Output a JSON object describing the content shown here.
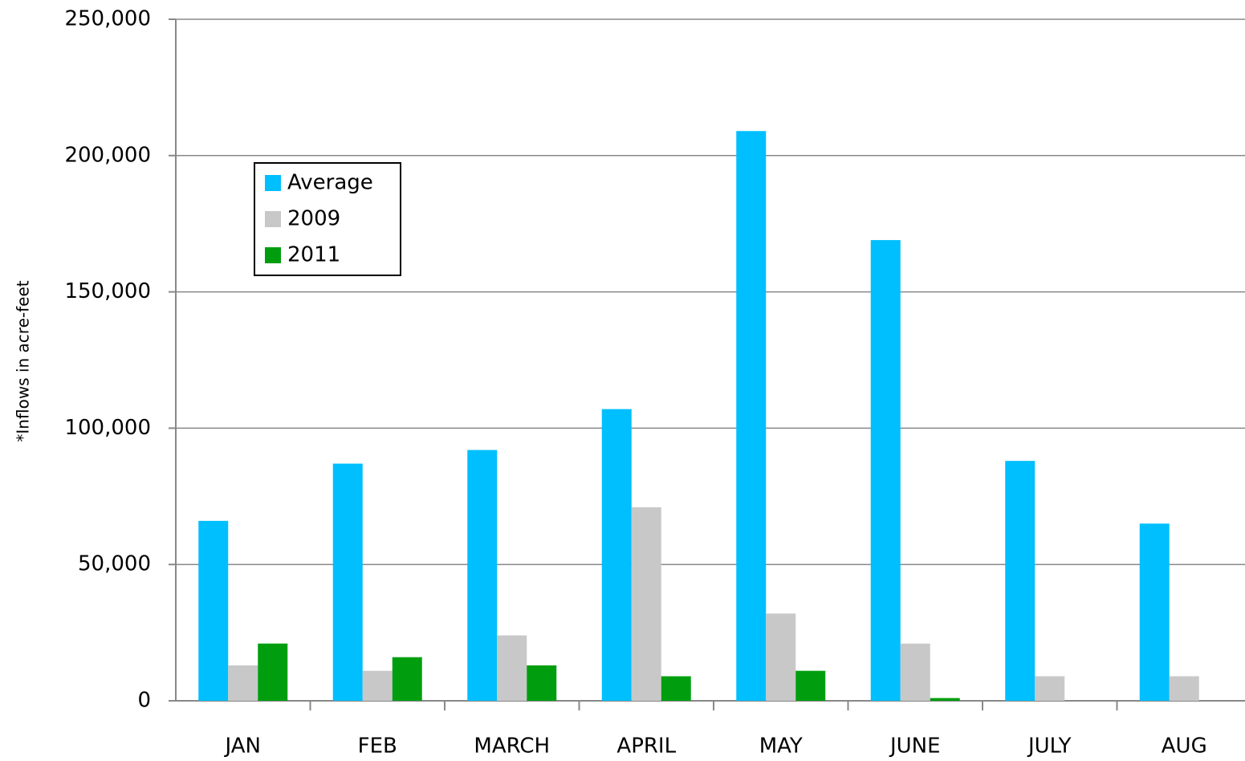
{
  "chart_data": {
    "type": "bar",
    "y_label": "*Inflows in acre-feet",
    "categories": [
      "JAN",
      "FEB",
      "MARCH",
      "APRIL",
      "MAY",
      "JUNE",
      "JULY",
      "AUG"
    ],
    "series": [
      {
        "name": "Average",
        "color": "#00bfff",
        "values": [
          66000,
          87000,
          92000,
          107000,
          209000,
          169000,
          88000,
          65000
        ]
      },
      {
        "name": "2009",
        "color": "#c8c8c8",
        "values": [
          13000,
          11000,
          24000,
          71000,
          32000,
          21000,
          9000,
          9000
        ]
      },
      {
        "name": "2011",
        "color": "#009e0f",
        "values": [
          21000,
          16000,
          13000,
          9000,
          11000,
          1000,
          null,
          null
        ]
      }
    ],
    "ylim": [
      0,
      250000
    ],
    "yticks": [
      0,
      {
        "value": 50000,
        "label": "50,000"
      },
      {
        "value": 100000,
        "label": "100,000"
      },
      {
        "value": 150000,
        "label": "150,000"
      },
      {
        "value": 200000,
        "label": "200,000"
      },
      {
        "value": 250000,
        "label": "250,000"
      }
    ],
    "grid": true,
    "legend": "upper left"
  }
}
